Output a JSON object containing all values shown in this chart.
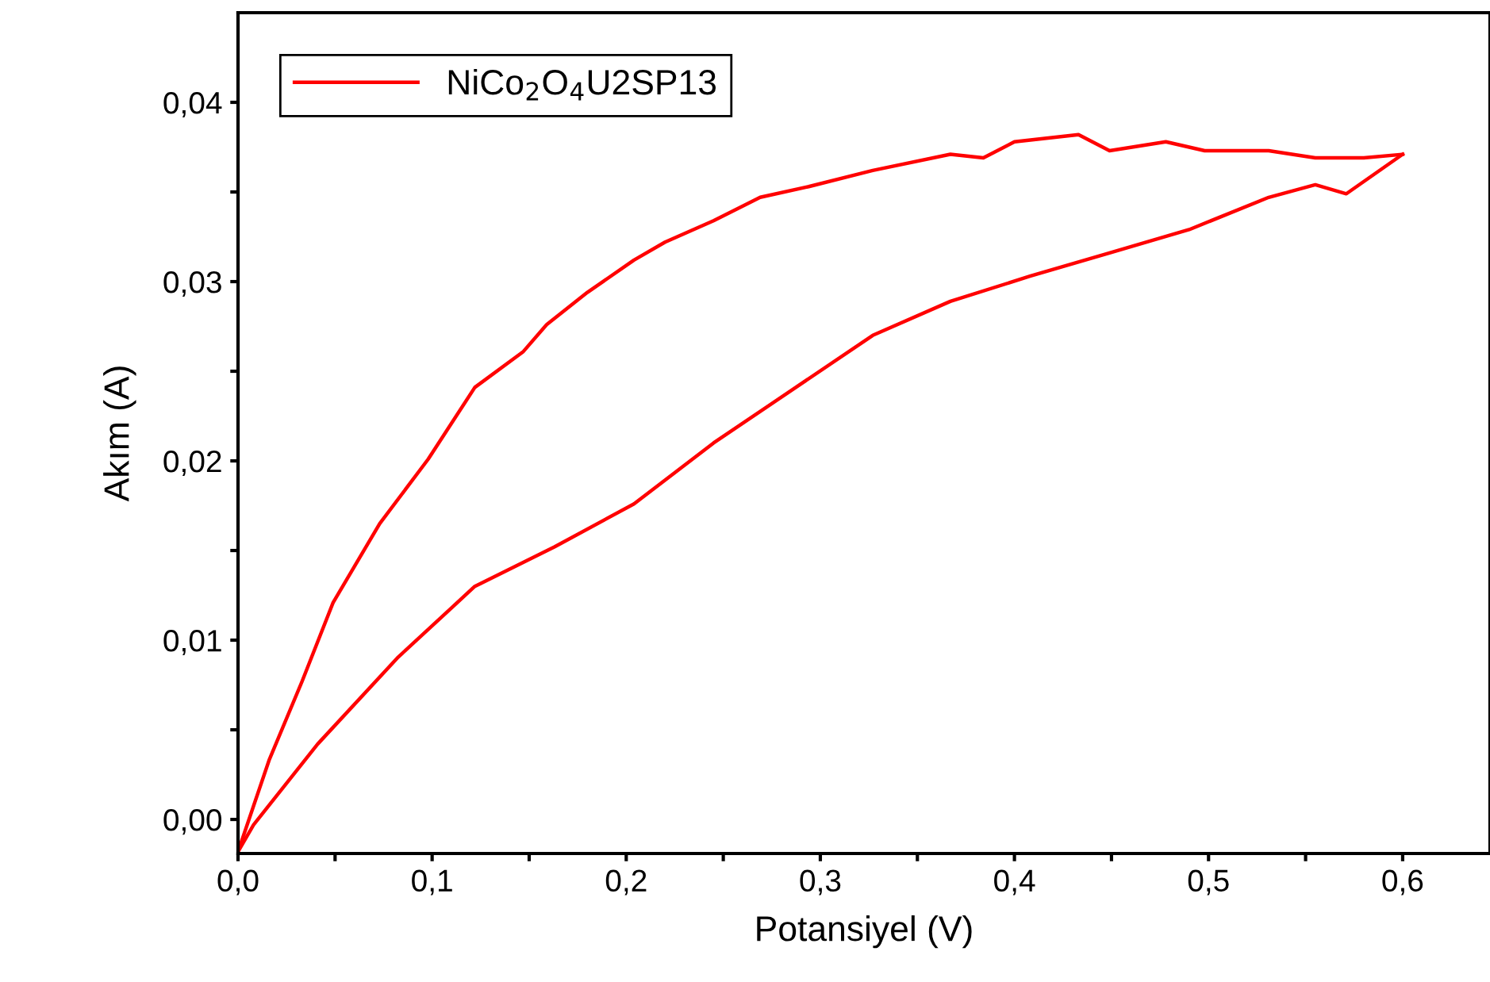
{
  "chart_data": {
    "type": "line",
    "xlabel": "Potansiyel (V)",
    "ylabel": "Akım (A)",
    "xlim": [
      0,
      0.645
    ],
    "ylim": [
      -0.0019,
      0.045
    ],
    "xticks": [
      {
        "value": 0,
        "label": "0,0"
      },
      {
        "value": 0.05,
        "label": null
      },
      {
        "value": 0.1,
        "label": "0,1"
      },
      {
        "value": 0.15,
        "label": null
      },
      {
        "value": 0.2,
        "label": "0,2"
      },
      {
        "value": 0.25,
        "label": null
      },
      {
        "value": 0.3,
        "label": "0,3"
      },
      {
        "value": 0.35,
        "label": null
      },
      {
        "value": 0.4,
        "label": "0,4"
      },
      {
        "value": 0.45,
        "label": null
      },
      {
        "value": 0.5,
        "label": "0,5"
      },
      {
        "value": 0.55,
        "label": null
      },
      {
        "value": 0.6,
        "label": "0,6"
      }
    ],
    "yticks": [
      {
        "value": 0,
        "label": "0,00"
      },
      {
        "value": 0.005,
        "label": null
      },
      {
        "value": 0.01,
        "label": "0,01"
      },
      {
        "value": 0.015,
        "label": null
      },
      {
        "value": 0.02,
        "label": "0,02"
      },
      {
        "value": 0.025,
        "label": null
      },
      {
        "value": 0.03,
        "label": "0,03"
      },
      {
        "value": 0.035,
        "label": null
      },
      {
        "value": 0.04,
        "label": "0,04"
      }
    ],
    "grid": false,
    "legend": "top left",
    "marker": "none",
    "line_style": "solid",
    "series": [
      {
        "name": "NiCo$_{2}$O$_{4}$U2SP13",
        "color": "#ff0000",
        "x": [
          0,
          0.008,
          0.041,
          0.082,
          0.122,
          0.163,
          0.204,
          0.245,
          0.286,
          0.327,
          0.367,
          0.408,
          0.449,
          0.49,
          0.531,
          0.555,
          0.571,
          0.6
        ],
        "values": [
          -0.0018,
          -0.0003,
          0.0042,
          0.009,
          0.013,
          0.0152,
          0.0176,
          0.021,
          0.024,
          0.027,
          0.0289,
          0.0303,
          0.0316,
          0.0329,
          0.0347,
          0.0354,
          0.0349,
          0.0371
        ]
      },
      {
        "color": "#ff0000",
        "x": [
          0.6,
          0.58,
          0.555,
          0.531,
          0.498,
          0.478,
          0.449,
          0.433,
          0.4,
          0.384,
          0.367,
          0.327,
          0.294,
          0.269,
          0.245,
          0.22,
          0.204,
          0.18,
          0.159,
          0.147,
          0.122,
          0.098,
          0.073,
          0.049,
          0.033,
          0.016,
          0
        ],
        "values": [
          0.0371,
          0.0369,
          0.0369,
          0.0373,
          0.0373,
          0.0378,
          0.0373,
          0.0382,
          0.0378,
          0.0369,
          0.0371,
          0.0362,
          0.0353,
          0.0347,
          0.0334,
          0.0322,
          0.0312,
          0.0294,
          0.0276,
          0.0261,
          0.0241,
          0.0201,
          0.0165,
          0.0121,
          0.0077,
          0.0033,
          -0.0018
        ]
      }
    ]
  }
}
